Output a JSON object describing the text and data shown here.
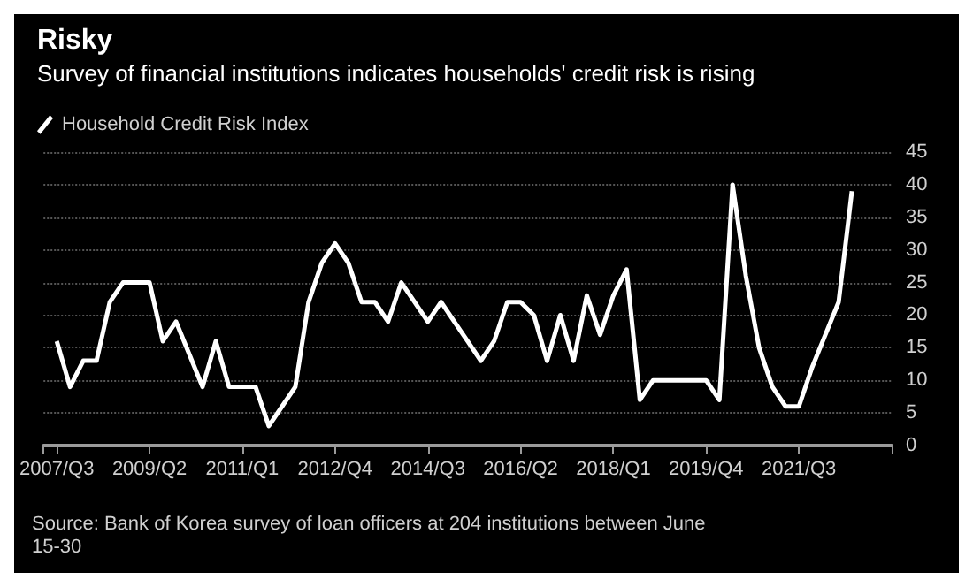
{
  "chart_data": {
    "type": "line",
    "title": "Risky",
    "subtitle": "Survey of financial institutions indicates households' credit risk is rising",
    "categories": [
      "2007/Q3",
      null,
      null,
      null,
      null,
      null,
      null,
      "2009/Q2",
      null,
      null,
      null,
      null,
      null,
      null,
      "2011/Q1",
      null,
      null,
      null,
      null,
      null,
      null,
      "2012/Q4",
      null,
      null,
      null,
      null,
      null,
      null,
      "2014/Q3",
      null,
      null,
      null,
      null,
      null,
      null,
      "2016/Q2",
      null,
      null,
      null,
      null,
      null,
      null,
      "2018/Q1",
      null,
      null,
      null,
      null,
      null,
      null,
      "2019/Q4",
      null,
      null,
      null,
      null,
      null,
      null,
      "2021/Q3",
      null,
      null,
      null,
      null
    ],
    "series": [
      {
        "name": "Household Credit Risk Index",
        "color": "#ffffff",
        "values": [
          16,
          9,
          13,
          13,
          22,
          25,
          25,
          25,
          16,
          19,
          14,
          9,
          16,
          9,
          9,
          9,
          3,
          6,
          9,
          22,
          28,
          31,
          28,
          22,
          22,
          19,
          25,
          22,
          19,
          22,
          19,
          16,
          13,
          16,
          22,
          22,
          20,
          13,
          20,
          13,
          23,
          17,
          23,
          27,
          7,
          10,
          10,
          10,
          10,
          10,
          7,
          40,
          26,
          15,
          9,
          6,
          6,
          12,
          17,
          22,
          39
        ]
      }
    ],
    "ylim": [
      0,
      45
    ],
    "yticks": [
      0,
      5,
      10,
      15,
      20,
      25,
      30,
      35,
      40,
      45
    ],
    "grid": "y",
    "legend": "top left",
    "marker": "none",
    "line_style": "solid",
    "annotations": [
      "Source: Bank of Korea survey of loan officers at 204 institutions between June 15-30"
    ]
  }
}
